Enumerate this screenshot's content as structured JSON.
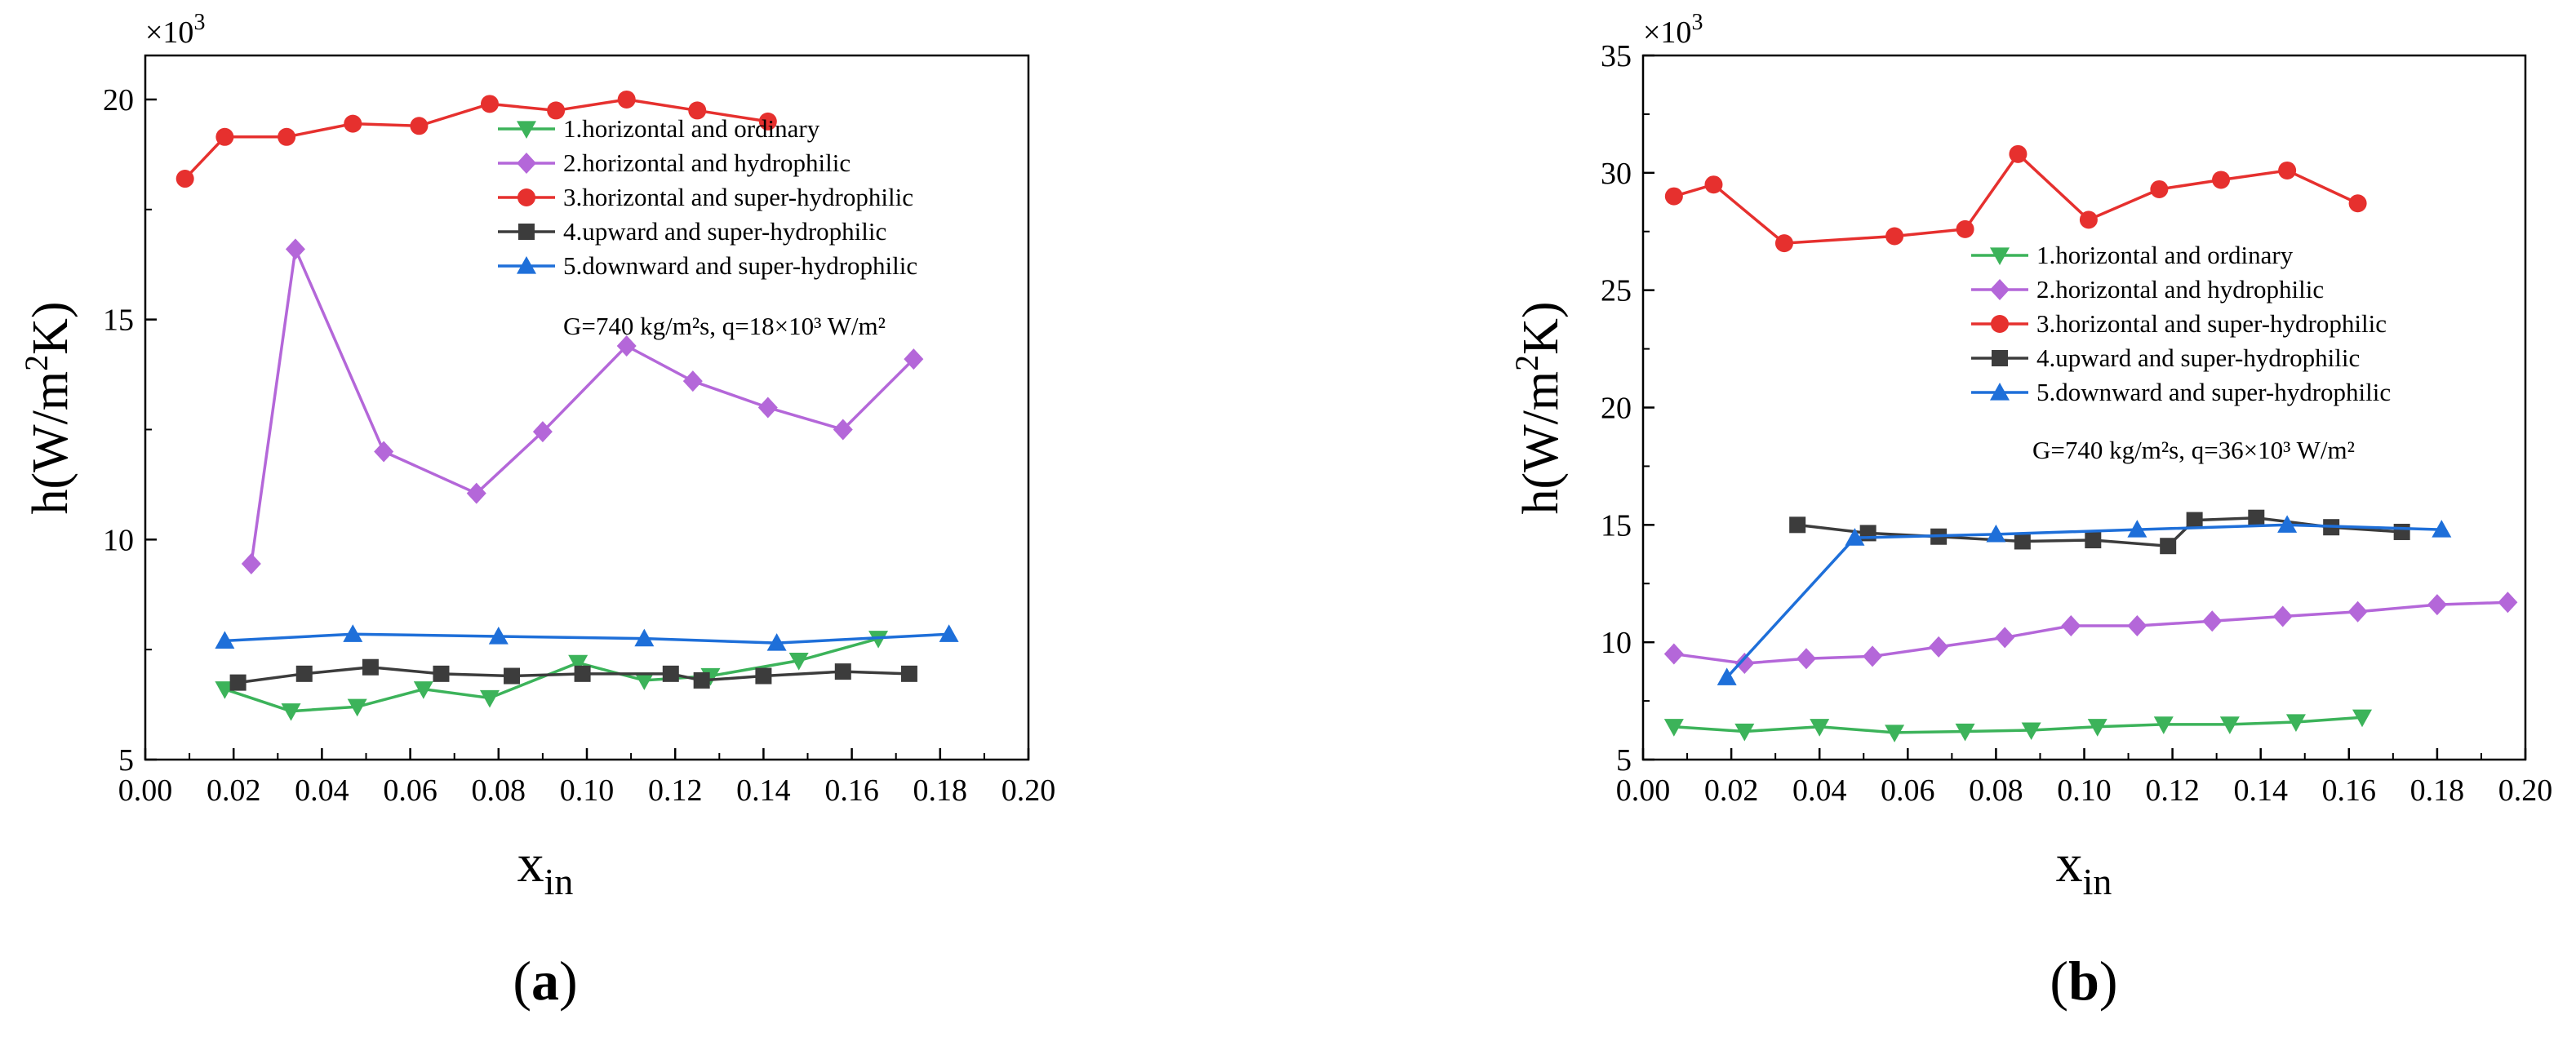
{
  "chart_data": [
    {
      "type": "line",
      "panel_label": "(a)",
      "panel_letter": "a",
      "xlabel_main": "x",
      "xlabel_sub": "in",
      "ylabel_main": "h(W/m",
      "ylabel_sup": "2",
      "ylabel_end": "K)",
      "y_multiplier_base": "×10",
      "y_multiplier_exp": "3",
      "xlim": [
        0.0,
        0.2
      ],
      "ylim": [
        5,
        21
      ],
      "xticks": [
        "0.00",
        "0.02",
        "0.04",
        "0.06",
        "0.08",
        "0.10",
        "0.12",
        "0.14",
        "0.16",
        "0.18",
        "0.20"
      ],
      "yticks": [
        "5",
        "10",
        "15",
        "20"
      ],
      "ytick_values": [
        5,
        10,
        15,
        20
      ],
      "condition_text": "G=740 kg/m²s, q=18×10³ W/m²",
      "legend_position": "top-right",
      "series": [
        {
          "name": "1.horizontal and ordinary",
          "color": "#3cb35a",
          "marker": "triangle-down",
          "x": [
            0.018,
            0.033,
            0.048,
            0.063,
            0.078,
            0.098,
            0.113,
            0.128,
            0.148,
            0.166
          ],
          "y": [
            6.6,
            6.1,
            6.2,
            6.6,
            6.4,
            7.2,
            6.8,
            6.9,
            7.25,
            7.75
          ]
        },
        {
          "name": "2.horizontal and hydrophilic",
          "color": "#b467d9",
          "marker": "diamond",
          "x": [
            0.024,
            0.034,
            0.054,
            0.075,
            0.09,
            0.109,
            0.124,
            0.141,
            0.158,
            0.174
          ],
          "y": [
            9.45,
            16.6,
            12.0,
            11.05,
            12.45,
            14.4,
            13.6,
            13.0,
            12.5,
            14.1
          ]
        },
        {
          "name": "3.horizontal and super-hydrophilic",
          "color": "#e6302e",
          "marker": "circle",
          "x": [
            0.009,
            0.018,
            0.032,
            0.047,
            0.062,
            0.078,
            0.093,
            0.109,
            0.125,
            0.141
          ],
          "y": [
            18.2,
            19.15,
            19.15,
            19.45,
            19.4,
            19.9,
            19.75,
            20.0,
            19.75,
            19.5
          ]
        },
        {
          "name": "4.upward and super-hydrophilic",
          "color": "#3c3c3c",
          "marker": "square",
          "x": [
            0.021,
            0.036,
            0.051,
            0.067,
            0.083,
            0.099,
            0.119,
            0.126,
            0.14,
            0.158,
            0.173
          ],
          "y": [
            6.75,
            6.95,
            7.1,
            6.95,
            6.9,
            6.95,
            6.95,
            6.8,
            6.9,
            7.0,
            6.95
          ]
        },
        {
          "name": "5.downward and super-hydrophilic",
          "color": "#1e6fd9",
          "marker": "triangle-up",
          "x": [
            0.018,
            0.047,
            0.08,
            0.113,
            0.143,
            0.182
          ],
          "y": [
            7.7,
            7.85,
            7.8,
            7.75,
            7.65,
            7.85
          ]
        }
      ]
    },
    {
      "type": "line",
      "panel_label": "(b)",
      "panel_letter": "b",
      "xlabel_main": "x",
      "xlabel_sub": "in",
      "ylabel_main": "h(W/m",
      "ylabel_sup": "2",
      "ylabel_end": "K)",
      "y_multiplier_base": "×10",
      "y_multiplier_exp": "3",
      "xlim": [
        0.0,
        0.2
      ],
      "ylim": [
        5,
        35
      ],
      "xticks": [
        "0.00",
        "0.02",
        "0.04",
        "0.06",
        "0.08",
        "0.10",
        "0.12",
        "0.14",
        "0.16",
        "0.18",
        "0.20"
      ],
      "yticks": [
        "5",
        "10",
        "15",
        "20",
        "25",
        "30",
        "35"
      ],
      "ytick_values": [
        5,
        10,
        15,
        20,
        25,
        30,
        35
      ],
      "condition_text": "G=740 kg/m²s, q=36×10³ W/m²",
      "legend_position": "center-right",
      "series": [
        {
          "name": "1.horizontal and ordinary",
          "color": "#3cb35a",
          "marker": "triangle-down",
          "x": [
            0.007,
            0.023,
            0.04,
            0.057,
            0.073,
            0.088,
            0.103,
            0.118,
            0.133,
            0.148,
            0.163
          ],
          "y": [
            6.4,
            6.2,
            6.4,
            6.15,
            6.2,
            6.25,
            6.4,
            6.5,
            6.5,
            6.6,
            6.8
          ]
        },
        {
          "name": "2.horizontal and hydrophilic",
          "color": "#b467d9",
          "marker": "diamond",
          "x": [
            0.007,
            0.023,
            0.037,
            0.052,
            0.067,
            0.082,
            0.097,
            0.112,
            0.129,
            0.145,
            0.162,
            0.18,
            0.196
          ],
          "y": [
            9.5,
            9.1,
            9.3,
            9.4,
            9.8,
            10.2,
            10.7,
            10.7,
            10.9,
            11.1,
            11.3,
            11.6,
            11.7
          ]
        },
        {
          "name": "3.horizontal and super-hydrophilic",
          "color": "#e6302e",
          "marker": "circle",
          "x": [
            0.007,
            0.016,
            0.032,
            0.057,
            0.073,
            0.085,
            0.101,
            0.117,
            0.131,
            0.146,
            0.162
          ],
          "y": [
            29.0,
            29.5,
            27.0,
            27.3,
            27.6,
            30.8,
            28.0,
            29.3,
            29.7,
            30.1,
            28.7
          ]
        },
        {
          "name": "4.upward and super-hydrophilic",
          "color": "#3c3c3c",
          "marker": "square",
          "x": [
            0.035,
            0.051,
            0.067,
            0.086,
            0.102,
            0.119,
            0.125,
            0.139,
            0.156,
            0.172
          ],
          "y": [
            15.0,
            14.65,
            14.5,
            14.3,
            14.35,
            14.1,
            15.2,
            15.3,
            14.9,
            14.7
          ]
        },
        {
          "name": "5.downward and super-hydrophilic",
          "color": "#1e6fd9",
          "marker": "triangle-up",
          "x": [
            0.019,
            0.048,
            0.08,
            0.112,
            0.146,
            0.181
          ],
          "y": [
            8.5,
            14.45,
            14.6,
            14.8,
            15.0,
            14.8
          ]
        }
      ]
    }
  ]
}
